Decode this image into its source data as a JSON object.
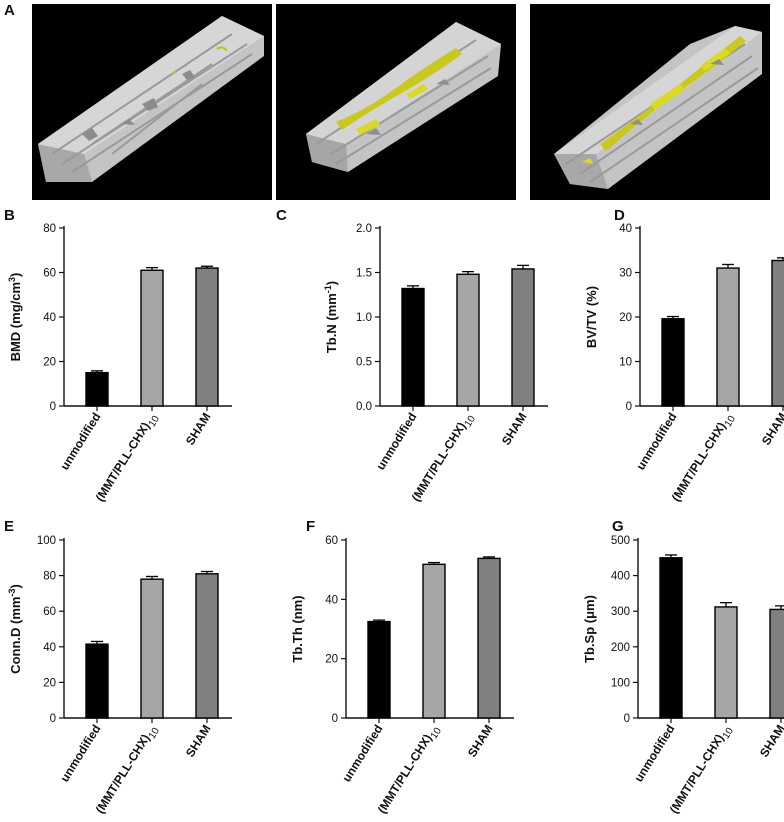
{
  "figure": {
    "panels": [
      "A",
      "B",
      "C",
      "D",
      "E",
      "F",
      "G"
    ]
  },
  "colors": {
    "bone": "#c8c8c8",
    "highlight": "#d8d820",
    "bar_unmodified": "#000000",
    "bar_coated": "#a6a6a6",
    "bar_sham": "#808080"
  },
  "chart_data": [
    {
      "panel": "B",
      "type": "bar",
      "categories": [
        "unmodified",
        "(MMT/PLL-CHX)",
        "SHAM"
      ],
      "category_subscripts": [
        "",
        "10",
        ""
      ],
      "values": [
        15,
        61,
        62
      ],
      "errors": [
        0.8,
        1.2,
        0.8
      ],
      "ylabel": "BMD (mg/cm",
      "ylabel_sup": "3",
      "ylabel_end": ")",
      "ylim": [
        0,
        80
      ],
      "yticks": [
        0,
        20,
        40,
        60,
        80
      ],
      "yticks_text": [
        "0",
        "20",
        "40",
        "60",
        "80"
      ]
    },
    {
      "panel": "C",
      "type": "bar",
      "categories": [
        "unmodified",
        "(MMT/PLL-CHX)",
        "SHAM"
      ],
      "category_subscripts": [
        "",
        "10",
        ""
      ],
      "values": [
        1.32,
        1.48,
        1.54
      ],
      "errors": [
        0.03,
        0.03,
        0.04
      ],
      "ylabel": "Tb.N (mm",
      "ylabel_sup": "-1",
      "ylabel_end": ")",
      "ylim": [
        0,
        2.0
      ],
      "yticks": [
        0,
        0.5,
        1.0,
        1.5,
        2.0
      ],
      "yticks_text": [
        "0.0",
        "0.5",
        "1.0",
        "1.5",
        "2.0"
      ]
    },
    {
      "panel": "D",
      "type": "bar",
      "categories": [
        "unmodified",
        "(MMT/PLL-CHX)",
        "SHAM"
      ],
      "category_subscripts": [
        "",
        "10",
        ""
      ],
      "values": [
        19.6,
        31.0,
        32.7
      ],
      "errors": [
        0.5,
        0.8,
        0.6
      ],
      "ylabel": "BV/TV (%)",
      "ylabel_sup": "",
      "ylabel_end": "",
      "ylim": [
        0,
        40
      ],
      "yticks": [
        0,
        10,
        20,
        30,
        40
      ],
      "yticks_text": [
        "0",
        "10",
        "20",
        "30",
        "40"
      ]
    },
    {
      "panel": "E",
      "type": "bar",
      "categories": [
        "unmodified",
        "(MMT/PLL-CHX)",
        "SHAM"
      ],
      "category_subscripts": [
        "",
        "10",
        ""
      ],
      "values": [
        41.5,
        78,
        81
      ],
      "errors": [
        1.5,
        1.5,
        1.3
      ],
      "ylabel": "Conn.D (mm",
      "ylabel_sup": "-3",
      "ylabel_end": ")",
      "ylim": [
        0,
        100
      ],
      "yticks": [
        0,
        20,
        40,
        60,
        80,
        100
      ],
      "yticks_text": [
        "0",
        "20",
        "40",
        "60",
        "80",
        "100"
      ]
    },
    {
      "panel": "F",
      "type": "bar",
      "categories": [
        "unmodified",
        "(MMT/PLL-CHX)",
        "SHAM"
      ],
      "category_subscripts": [
        "",
        "10",
        ""
      ],
      "values": [
        32.5,
        51.8,
        53.8
      ],
      "errors": [
        0.5,
        0.6,
        0.5
      ],
      "ylabel": "Tb.Th (nm)",
      "ylabel_sup": "",
      "ylabel_end": "",
      "ylim": [
        0,
        60
      ],
      "yticks": [
        0,
        20,
        40,
        60
      ],
      "yticks_text": [
        "0",
        "20",
        "40",
        "60"
      ]
    },
    {
      "panel": "G",
      "type": "bar",
      "categories": [
        "unmodified",
        "(MMT/PLL-CHX)",
        "SHAM"
      ],
      "category_subscripts": [
        "",
        "10",
        ""
      ],
      "values": [
        450,
        312,
        305
      ],
      "errors": [
        8,
        12,
        10
      ],
      "ylabel": "Tb.Sp (μm)",
      "ylabel_sup": "",
      "ylabel_end": "",
      "ylim": [
        0,
        500
      ],
      "yticks": [
        0,
        100,
        200,
        300,
        400,
        500
      ],
      "yticks_text": [
        "0",
        "100",
        "200",
        "300",
        "400",
        "500"
      ]
    }
  ]
}
